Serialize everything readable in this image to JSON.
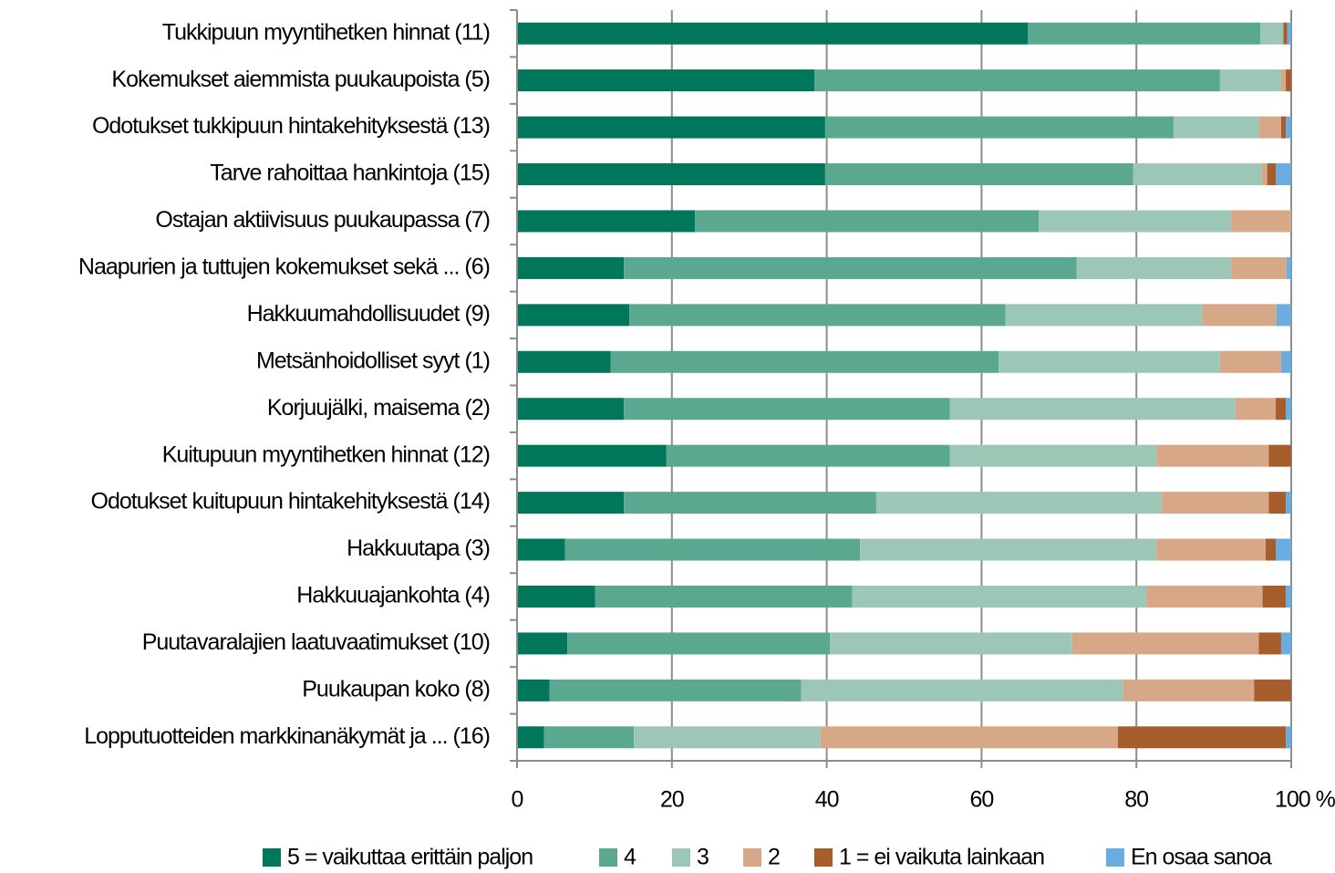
{
  "chart_data": {
    "type": "stacked_barh",
    "categories": [
      "Tukkipuun myyntihetken hinnat (11)",
      "Kokemukset aiemmista puukaupoista (5)",
      "Odotukset tukkipuun hintakehityksestä (13)",
      "Tarve rahoittaa hankintoja (15)",
      "Ostajan aktiivisuus puukaupassa (7)",
      "Naapurien ja tuttujen kokemukset sekä ... (6)",
      "Hakkuumahdollisuudet (9)",
      "Metsänhoidolliset syyt (1)",
      "Korjuujälki, maisema (2)",
      "Kuitupuun myyntihetken hinnat (12)",
      "Odotukset kuitupuun hintakehityksestä (14)",
      "Hakkuutapa (3)",
      "Hakkuuajankohta (4)",
      "Puutavaralajien laatuvaatimukset (10)",
      "Puukaupan koko (8)",
      "Lopputuotteiden markkinanäkymät ja ... (16)"
    ],
    "series": [
      {
        "name": "5 = vaikuttaa erittäin paljon",
        "color": "#00775a",
        "values": [
          66,
          38.4,
          39.8,
          39.8,
          23,
          13.8,
          14.5,
          12.1,
          13.8,
          19.3,
          13.8,
          6.2,
          10.1,
          6.5,
          4.2,
          3.5
        ]
      },
      {
        "name": "4",
        "color": "#5ba891",
        "values": [
          30,
          52.4,
          45,
          39.8,
          44.4,
          58.5,
          48.6,
          50.1,
          42.1,
          36.6,
          32.6,
          38.1,
          33.2,
          33.9,
          32.5,
          11.6
        ]
      },
      {
        "name": "3",
        "color": "#9cc7b7",
        "values": [
          3,
          7.9,
          11,
          16.6,
          24.8,
          19.9,
          25.4,
          28.6,
          36.9,
          26.7,
          36.9,
          38.3,
          38,
          31.3,
          41.6,
          24.1
        ]
      },
      {
        "name": "2",
        "color": "#d6a888",
        "values": [
          0,
          0.6,
          2.9,
          0.7,
          7.8,
          7.2,
          9.6,
          7.9,
          5.2,
          14.5,
          13.8,
          14.1,
          15,
          24.1,
          16.9,
          38.4
        ]
      },
      {
        "name": "1 = ei vaikuta lainkaan",
        "color": "#a85e2c",
        "values": [
          0.5,
          0.7,
          0.6,
          1.1,
          0,
          0,
          0,
          0,
          1.3,
          2.9,
          2.2,
          1.3,
          3,
          2.9,
          4.8,
          21.7
        ]
      },
      {
        "name": "En osaa sanoa",
        "color": "#6aade0",
        "values": [
          0.5,
          0,
          0.7,
          2,
          0,
          0.6,
          1.9,
          1.3,
          0.7,
          0,
          0.7,
          2,
          0.7,
          1.3,
          0,
          0.7
        ]
      }
    ],
    "xlim": [
      0,
      100
    ],
    "xticks": [
      0,
      20,
      40,
      60,
      80,
      {
        "value": 100,
        "label": "100 %"
      }
    ],
    "grid": true,
    "legend": "bottom"
  }
}
